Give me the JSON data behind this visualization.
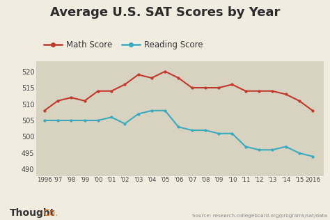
{
  "title": "Average U.S. SAT Scores by Year",
  "background_color": "#f0ece0",
  "plot_bg_color": "#d8d2c0",
  "years": [
    1996,
    1997,
    1998,
    1999,
    2000,
    2001,
    2002,
    2003,
    2004,
    2005,
    2006,
    2007,
    2008,
    2009,
    2010,
    2011,
    2012,
    2013,
    2014,
    2015,
    2016
  ],
  "math_scores": [
    508,
    511,
    512,
    511,
    514,
    514,
    516,
    519,
    518,
    520,
    518,
    515,
    515,
    515,
    516,
    514,
    514,
    514,
    513,
    511,
    508
  ],
  "reading_scores": [
    505,
    505,
    505,
    505,
    505,
    506,
    504,
    507,
    508,
    508,
    503,
    502,
    502,
    501,
    501,
    497,
    496,
    496,
    497,
    495,
    494
  ],
  "math_color": "#c0392b",
  "reading_color": "#3aabbf",
  "ylim": [
    488,
    523
  ],
  "yticks": [
    490,
    495,
    500,
    505,
    510,
    515,
    520
  ],
  "title_fontsize": 13,
  "legend_math": "Math Score",
  "legend_reading": "Reading Score",
  "source_text": "Source: research.collegeboard.org/programs/sat/data",
  "thoughtco_bold": "Thought",
  "thoughtco_regular": "Co.",
  "marker": "o",
  "markersize": 3.0,
  "linewidth": 1.5,
  "x_tick_labels": [
    "1996",
    "'97",
    "'98",
    "'99",
    "'00",
    "'01",
    "'02",
    "'03",
    "'04",
    "'05",
    "'06",
    "'07",
    "'08",
    "'09",
    "'10",
    "'11",
    "'12",
    "'13",
    "'14",
    "'15",
    "2016"
  ]
}
